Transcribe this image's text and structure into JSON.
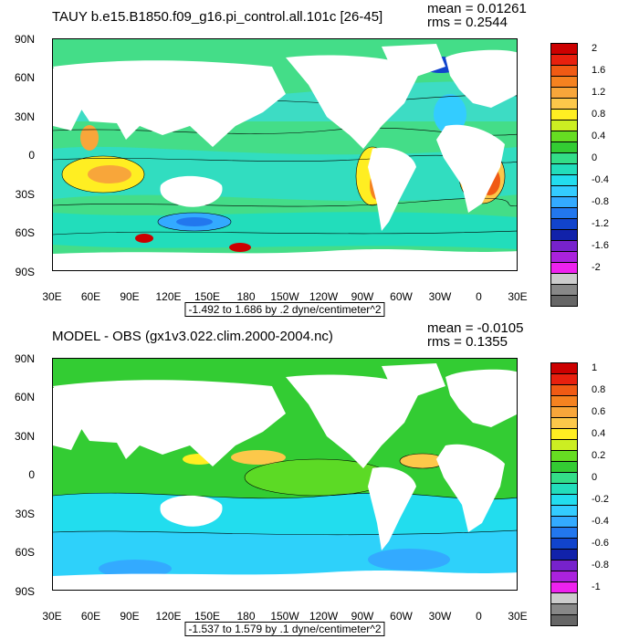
{
  "chart_data": [
    {
      "type": "heatmap",
      "title": "TAUY b.e15.B1850.f09_g16.pi_control.all.101c [26-45]",
      "mean_text": "mean = 0.01261",
      "rms_text": "rms = 0.2544",
      "subtitle": "-1.492 to 1.686 by .2 dyne/centimeter^2",
      "x_ticks": [
        "30E",
        "60E",
        "90E",
        "120E",
        "150E",
        "180",
        "150W",
        "120W",
        "90W",
        "60W",
        "30W",
        "0",
        "30E"
      ],
      "y_ticks": [
        "90N",
        "60N",
        "30N",
        "0",
        "30S",
        "60S",
        "90S"
      ],
      "xlim": [
        30,
        390
      ],
      "ylim": [
        -90,
        90
      ],
      "colorbar_labels": [
        "2",
        "1.6",
        "1.2",
        "0.8",
        "0.4",
        "0",
        "-0.4",
        "-0.8",
        "-1.2",
        "-1.6",
        "-2"
      ],
      "colorbar_colors": [
        "#cc0000",
        "#e8200e",
        "#f05a14",
        "#f58220",
        "#f8a63a",
        "#fcc84a",
        "#ffee22",
        "#ccee22",
        "#66dd22",
        "#33cc33",
        "#33dd88",
        "#22ddbb",
        "#22ddee",
        "#33ccff",
        "#33aaff",
        "#2277ee",
        "#1144cc",
        "#1122aa",
        "#7722cc",
        "#aa22dd",
        "#ee22ee",
        "#cccccc",
        "#888888",
        "#666666"
      ]
    },
    {
      "type": "heatmap",
      "title": "MODEL - OBS (gx1v3.022.clim.2000-2004.nc)",
      "mean_text": "mean = -0.0105",
      "rms_text": "rms = 0.1355",
      "subtitle": "-1.537 to 1.579 by .1 dyne/centimeter^2",
      "x_ticks": [
        "30E",
        "60E",
        "90E",
        "120E",
        "150E",
        "180",
        "150W",
        "120W",
        "90W",
        "60W",
        "30W",
        "0",
        "30E"
      ],
      "y_ticks": [
        "90N",
        "60N",
        "30N",
        "0",
        "30S",
        "60S",
        "90S"
      ],
      "xlim": [
        30,
        390
      ],
      "ylim": [
        -90,
        90
      ],
      "colorbar_labels": [
        "1",
        "0.8",
        "0.6",
        "0.4",
        "0.2",
        "0",
        "-0.2",
        "-0.4",
        "-0.6",
        "-0.8",
        "-1"
      ],
      "colorbar_colors": [
        "#cc0000",
        "#e8200e",
        "#f05a14",
        "#f58220",
        "#f8a63a",
        "#fcc84a",
        "#ffee22",
        "#ccee22",
        "#66dd22",
        "#33cc33",
        "#33dd88",
        "#22ddbb",
        "#22ddee",
        "#33ccff",
        "#33aaff",
        "#2277ee",
        "#1144cc",
        "#1122aa",
        "#7722cc",
        "#aa22dd",
        "#ee22ee",
        "#cccccc",
        "#888888",
        "#666666"
      ]
    }
  ]
}
